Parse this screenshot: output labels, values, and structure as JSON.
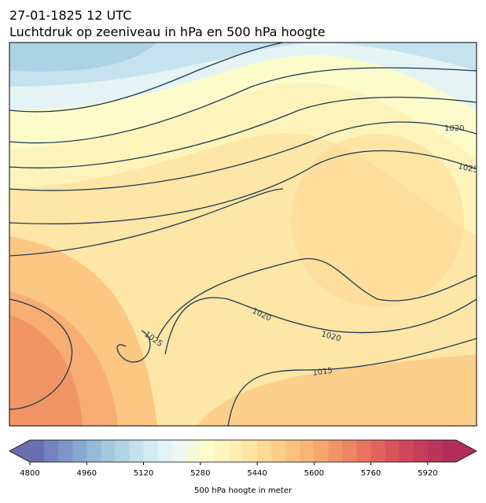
{
  "header": {
    "date": "27-01-1825 12 UTC",
    "title": "Luchtdruk op zeeniveau in hPa en 500 hPa hoogte"
  },
  "map": {
    "isobar_labels": [
      1020,
      1025,
      1020,
      1020,
      1025,
      1015
    ]
  },
  "colorbar": {
    "label": "500 hPa hoogte in meter",
    "lim": [
      4800,
      6000
    ],
    "ticks": [
      4800,
      4960,
      5120,
      5280,
      5440,
      5600,
      5760,
      5920
    ],
    "colors": [
      "#6a6fb1",
      "#7283bd",
      "#7c97c6",
      "#86a9cf",
      "#93bad7",
      "#a3c9df",
      "#b2d5e6",
      "#c3e2ed",
      "#d3ebf2",
      "#e2f3f6",
      "#eef8f1",
      "#f6fadc",
      "#fcfcc8",
      "#fef6bd",
      "#feeeb0",
      "#fee5a2",
      "#fddb95",
      "#fcd08a",
      "#fbc27f",
      "#f9b475",
      "#f6a56c",
      "#f29566",
      "#ee8563",
      "#e8745f",
      "#e2635c",
      "#da535b",
      "#d0465a",
      "#c63c5a",
      "#bb345b",
      "#b12e5a"
    ]
  }
}
